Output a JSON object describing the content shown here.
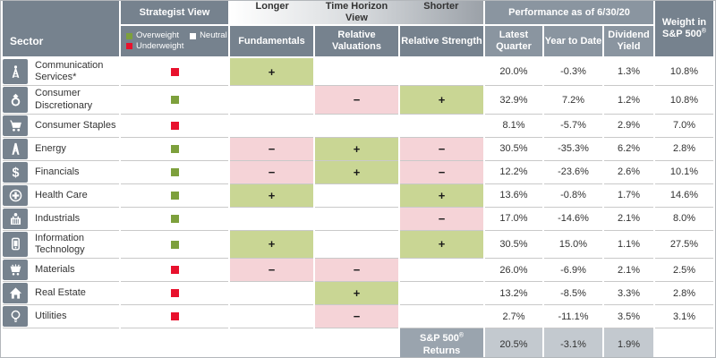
{
  "header": {
    "sector": "Sector",
    "strategist_view": "Strategist View",
    "legend": {
      "overweight": "Overweight",
      "neutral": "Neutral",
      "underweight": "Underweight"
    },
    "time_horizon": {
      "longer": "Longer",
      "title": "Time Horizon View",
      "shorter": "Shorter"
    },
    "performance": "Performance as of 6/30/20",
    "columns": {
      "fundamentals": "Fundamentals",
      "relative_valuations": "Relative Valuations",
      "relative_strength": "Relative Strength",
      "latest_quarter": "Latest Quarter",
      "year_to_date": "Year to Date",
      "dividend_yield": "Dividend Yield",
      "weight": "Weight in S&P 500®"
    }
  },
  "footer": {
    "label": "S&P 500® Returns"
  },
  "colors": {
    "header_gray": "#76828e",
    "performance_gray": "#8a95a0",
    "positive_green": "#c9d694",
    "negative_pink": "#f5d3d7",
    "overweight_green": "#7da03c",
    "underweight_red": "#e8112d",
    "neutral_white": "#ffffff",
    "sp_label_gray": "#9aa4ae",
    "sp_values_gray": "#c3c9cf"
  },
  "chart_data": {
    "type": "table",
    "columns": [
      "Sector",
      "Strategist View",
      "Fundamentals",
      "Relative Valuations",
      "Relative Strength",
      "Latest Quarter",
      "Year to Date",
      "Dividend Yield",
      "Weight in S&P 500®"
    ],
    "rows": [
      {
        "sector": "Communication Services*",
        "icon": "communication-tower-icon",
        "view": "underweight",
        "fundamentals": "+",
        "relative_valuations": "",
        "relative_strength": "",
        "latest_quarter": "20.0%",
        "year_to_date": "-0.3%",
        "dividend_yield": "1.3%",
        "weight": "10.8%"
      },
      {
        "sector": "Consumer Discretionary",
        "icon": "ring-icon",
        "view": "overweight",
        "fundamentals": "",
        "relative_valuations": "−",
        "relative_strength": "+",
        "latest_quarter": "32.9%",
        "year_to_date": "7.2%",
        "dividend_yield": "1.2%",
        "weight": "10.8%"
      },
      {
        "sector": "Consumer Staples",
        "icon": "shopping-cart-icon",
        "view": "underweight",
        "fundamentals": "",
        "relative_valuations": "",
        "relative_strength": "",
        "latest_quarter": "8.1%",
        "year_to_date": "-5.7%",
        "dividend_yield": "2.9%",
        "weight": "7.0%"
      },
      {
        "sector": "Energy",
        "icon": "oil-derrick-icon",
        "view": "overweight",
        "fundamentals": "−",
        "relative_valuations": "+",
        "relative_strength": "−",
        "latest_quarter": "30.5%",
        "year_to_date": "-35.3%",
        "dividend_yield": "6.2%",
        "weight": "2.8%"
      },
      {
        "sector": "Financials",
        "icon": "dollar-sign-icon",
        "view": "overweight",
        "fundamentals": "−",
        "relative_valuations": "+",
        "relative_strength": "−",
        "latest_quarter": "12.2%",
        "year_to_date": "-23.6%",
        "dividend_yield": "2.6%",
        "weight": "10.1%"
      },
      {
        "sector": "Health Care",
        "icon": "medical-cross-icon",
        "view": "overweight",
        "fundamentals": "+",
        "relative_valuations": "",
        "relative_strength": "+",
        "latest_quarter": "13.6%",
        "year_to_date": "-0.8%",
        "dividend_yield": "1.7%",
        "weight": "14.6%"
      },
      {
        "sector": "Industrials",
        "icon": "factory-icon",
        "view": "overweight",
        "fundamentals": "",
        "relative_valuations": "",
        "relative_strength": "−",
        "latest_quarter": "17.0%",
        "year_to_date": "-14.6%",
        "dividend_yield": "2.1%",
        "weight": "8.0%"
      },
      {
        "sector": "Information Technology",
        "icon": "smartphone-icon",
        "view": "overweight",
        "fundamentals": "+",
        "relative_valuations": "",
        "relative_strength": "+",
        "latest_quarter": "30.5%",
        "year_to_date": "15.0%",
        "dividend_yield": "1.1%",
        "weight": "27.5%"
      },
      {
        "sector": "Materials",
        "icon": "mining-cart-icon",
        "view": "underweight",
        "fundamentals": "−",
        "relative_valuations": "−",
        "relative_strength": "",
        "latest_quarter": "26.0%",
        "year_to_date": "-6.9%",
        "dividend_yield": "2.1%",
        "weight": "2.5%"
      },
      {
        "sector": "Real Estate",
        "icon": "house-icon",
        "view": "underweight",
        "fundamentals": "",
        "relative_valuations": "+",
        "relative_strength": "",
        "latest_quarter": "13.2%",
        "year_to_date": "-8.5%",
        "dividend_yield": "3.3%",
        "weight": "2.8%"
      },
      {
        "sector": "Utilities",
        "icon": "lightbulb-icon",
        "view": "underweight",
        "fundamentals": "",
        "relative_valuations": "−",
        "relative_strength": "",
        "latest_quarter": "2.7%",
        "year_to_date": "-11.1%",
        "dividend_yield": "3.5%",
        "weight": "3.1%"
      }
    ],
    "sp500_returns": {
      "latest_quarter": "20.5%",
      "year_to_date": "-3.1%",
      "dividend_yield": "1.9%"
    }
  }
}
